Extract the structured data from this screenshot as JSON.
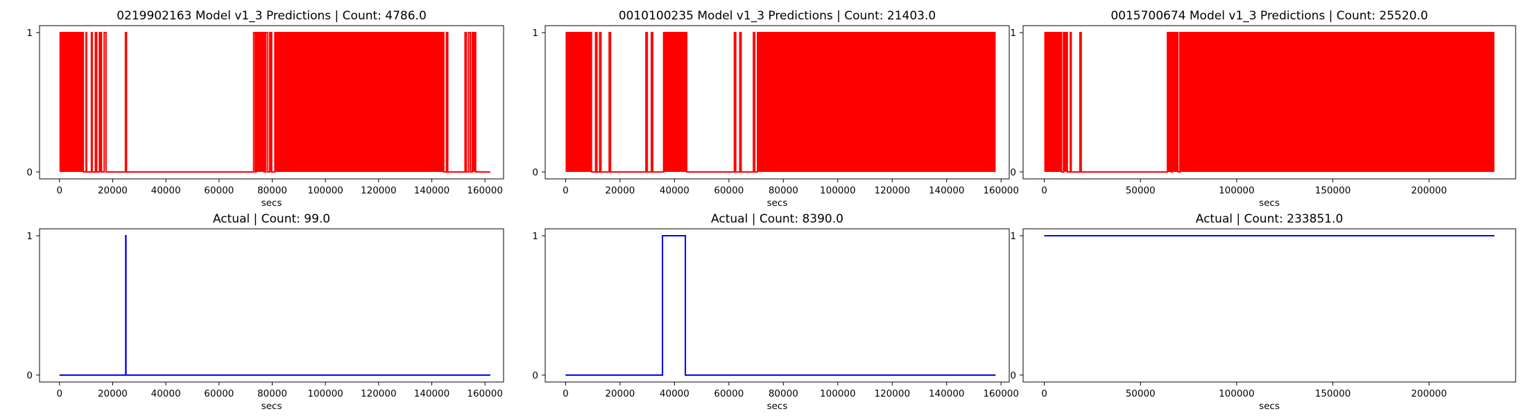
{
  "figure": {
    "background": "#ffffff"
  },
  "chart_data": [
    {
      "type": "line",
      "title": "0219902163 Model v1_3 Predictions | Count: 4786.0",
      "xlabel": "secs",
      "ylabel": "",
      "xlim": [
        -7500,
        167000
      ],
      "ylim": [
        -0.05,
        1.05
      ],
      "xticks": [
        0,
        20000,
        40000,
        60000,
        80000,
        100000,
        120000,
        140000,
        160000
      ],
      "yticks": [
        0,
        1
      ],
      "color": "#ff0000",
      "x_max": 162000,
      "segments_value_1": [
        [
          0,
          9000
        ],
        [
          10000,
          10200
        ],
        [
          12000,
          12300
        ],
        [
          13500,
          14000
        ],
        [
          15000,
          15800
        ],
        [
          16800,
          17500
        ],
        [
          24800,
          25200
        ],
        [
          73000,
          73600
        ],
        [
          74000,
          77000
        ],
        [
          77500,
          78200
        ],
        [
          79000,
          79800
        ],
        [
          81000,
          144500
        ],
        [
          145500,
          146000
        ],
        [
          152500,
          153000
        ],
        [
          153800,
          154500
        ],
        [
          155200,
          156500
        ]
      ]
    },
    {
      "type": "line",
      "title": "0010100235 Model v1_3 Predictions | Count: 21403.0",
      "xlabel": "secs",
      "ylabel": "",
      "xlim": [
        -7500,
        163000
      ],
      "ylim": [
        -0.05,
        1.05
      ],
      "xticks": [
        0,
        20000,
        40000,
        60000,
        80000,
        100000,
        120000,
        140000,
        160000
      ],
      "yticks": [
        0,
        1
      ],
      "color": "#ff0000",
      "x_max": 158000,
      "segments_value_1": [
        [
          0,
          9500
        ],
        [
          11000,
          11500
        ],
        [
          12500,
          13000
        ],
        [
          16000,
          16500
        ],
        [
          29500,
          30000
        ],
        [
          31500,
          32000
        ],
        [
          36000,
          44500
        ],
        [
          62000,
          62500
        ],
        [
          64000,
          64500
        ],
        [
          69000,
          69500
        ],
        [
          70500,
          158000
        ]
      ]
    },
    {
      "type": "line",
      "title": "0015700674 Model v1_3 Predictions | Count: 25520.0",
      "xlabel": "secs",
      "ylabel": "",
      "xlim": [
        -11000,
        245000
      ],
      "ylim": [
        -0.05,
        1.05
      ],
      "xticks": [
        0,
        50000,
        100000,
        150000,
        200000
      ],
      "yticks": [
        0,
        1
      ],
      "color": "#ff0000",
      "x_max": 234000,
      "segments_value_1": [
        [
          0,
          9000
        ],
        [
          10000,
          12000
        ],
        [
          13500,
          14000
        ],
        [
          18500,
          19200
        ],
        [
          64000,
          66000
        ],
        [
          66500,
          69500
        ],
        [
          70500,
          234000
        ]
      ]
    },
    {
      "type": "line",
      "title": "Actual | Count: 99.0",
      "xlabel": "secs",
      "ylabel": "",
      "xlim": [
        -7500,
        167000
      ],
      "ylim": [
        -0.05,
        1.05
      ],
      "xticks": [
        0,
        20000,
        40000,
        60000,
        80000,
        100000,
        120000,
        140000,
        160000
      ],
      "yticks": [
        0,
        1
      ],
      "color": "#0000ff",
      "x_max": 162000,
      "segments_value_1": [
        [
          24900,
          25000
        ]
      ]
    },
    {
      "type": "line",
      "title": "Actual | Count: 8390.0",
      "xlabel": "secs",
      "ylabel": "",
      "xlim": [
        -7500,
        163000
      ],
      "ylim": [
        -0.05,
        1.05
      ],
      "xticks": [
        0,
        20000,
        40000,
        60000,
        80000,
        100000,
        120000,
        140000,
        160000
      ],
      "yticks": [
        0,
        1
      ],
      "color": "#0000ff",
      "x_max": 158000,
      "segments_value_1": [
        [
          35600,
          44000
        ]
      ]
    },
    {
      "type": "line",
      "title": "Actual | Count: 233851.0",
      "xlabel": "secs",
      "ylabel": "",
      "xlim": [
        -11000,
        245000
      ],
      "ylim": [
        -0.05,
        1.05
      ],
      "xticks": [
        0,
        50000,
        100000,
        150000,
        200000
      ],
      "yticks": [
        0,
        1
      ],
      "color": "#0000ff",
      "x_max": 234000,
      "segments_value_1": [
        [
          0,
          234000
        ]
      ]
    }
  ]
}
